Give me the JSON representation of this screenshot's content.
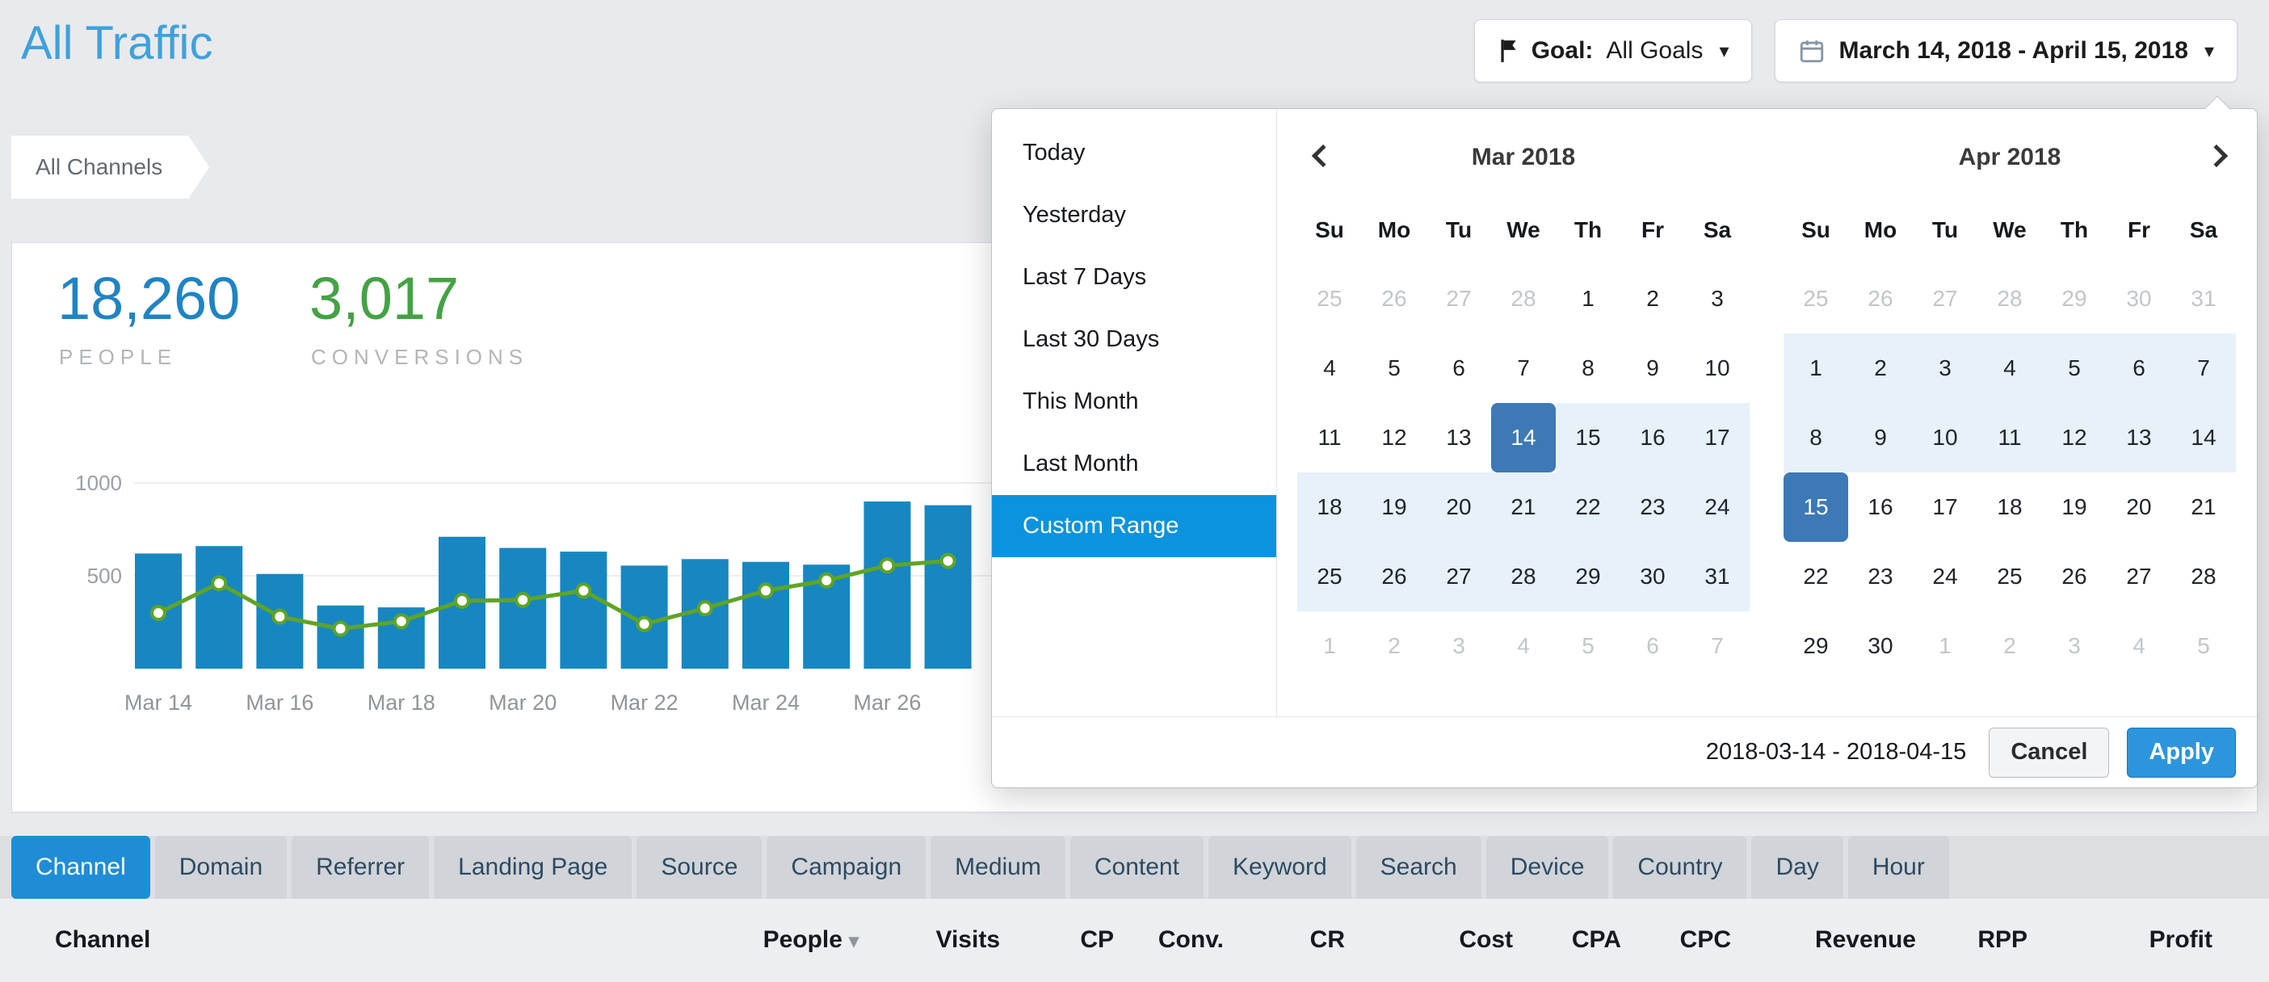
{
  "header": {
    "title": "All Traffic",
    "goal_button": {
      "label": "Goal:",
      "value": "All Goals"
    },
    "date_button": {
      "value": "March 14, 2018 - April 15, 2018"
    }
  },
  "breadcrumb": {
    "label": "All Channels"
  },
  "stats": {
    "people": {
      "value": "18,260",
      "label": "PEOPLE"
    },
    "conversions": {
      "value": "3,017",
      "label": "CONVERSIONS"
    }
  },
  "chart_data": {
    "type": "bar",
    "categories": [
      "Mar 14",
      "Mar 15",
      "Mar 16",
      "Mar 17",
      "Mar 18",
      "Mar 19",
      "Mar 20",
      "Mar 21",
      "Mar 22",
      "Mar 23",
      "Mar 24",
      "Mar 25",
      "Mar 26",
      "Mar 27"
    ],
    "series": [
      {
        "name": "People",
        "type": "bar",
        "color": "#1787c1",
        "values": [
          620,
          660,
          510,
          340,
          330,
          710,
          650,
          630,
          555,
          590,
          575,
          560,
          900,
          880
        ]
      },
      {
        "name": "Conversions",
        "type": "line",
        "color": "#5fa424",
        "values": [
          300,
          460,
          280,
          215,
          255,
          365,
          370,
          420,
          240,
          325,
          420,
          475,
          555,
          580
        ]
      }
    ],
    "x_tick_labels": [
      "Mar 14",
      "Mar 16",
      "Mar 18",
      "Mar 20",
      "Mar 22",
      "Mar 24",
      "Mar 26"
    ],
    "y_ticks": [
      500,
      1000
    ],
    "ylim": [
      0,
      1100
    ],
    "grid": "horizontal",
    "legend": "none",
    "note": "right portion of chart hidden behind date-picker overlay; values estimated from pixels, line plotted on same left axis"
  },
  "datepicker": {
    "ranges": [
      "Today",
      "Yesterday",
      "Last 7 Days",
      "Last 30 Days",
      "This Month",
      "Last Month",
      "Custom Range"
    ],
    "active_range": "Custom Range",
    "weekdays": [
      "Su",
      "Mo",
      "Tu",
      "We",
      "Th",
      "Fr",
      "Sa"
    ],
    "months": [
      {
        "title": "Mar 2018",
        "weeks": [
          [
            "25:o",
            "26:o",
            "27:o",
            "28:o",
            "1",
            "2",
            "3"
          ],
          [
            "4",
            "5",
            "6",
            "7",
            "8",
            "9",
            "10"
          ],
          [
            "11",
            "12",
            "13",
            "14:s",
            "15:r",
            "16:r",
            "17:r"
          ],
          [
            "18:r",
            "19:r",
            "20:r",
            "21:r",
            "22:r",
            "23:r",
            "24:r"
          ],
          [
            "25:r",
            "26:r",
            "27:r",
            "28:r",
            "29:r",
            "30:r",
            "31:r"
          ],
          [
            "1:o",
            "2:o",
            "3:o",
            "4:o",
            "5:o",
            "6:o",
            "7:o"
          ]
        ]
      },
      {
        "title": "Apr 2018",
        "weeks": [
          [
            "25:o",
            "26:o",
            "27:o",
            "28:o",
            "29:o",
            "30:o",
            "31:o"
          ],
          [
            "1:r",
            "2:r",
            "3:r",
            "4:r",
            "5:r",
            "6:r",
            "7:r"
          ],
          [
            "8:r",
            "9:r",
            "10:r",
            "11:r",
            "12:r",
            "13:r",
            "14:r"
          ],
          [
            "15:s",
            "16",
            "17",
            "18",
            "19",
            "20",
            "21"
          ],
          [
            "22",
            "23",
            "24",
            "25",
            "26",
            "27",
            "28"
          ],
          [
            "29",
            "30",
            "1:o",
            "2:o",
            "3:o",
            "4:o",
            "5:o"
          ]
        ]
      }
    ],
    "selected_start": "2018-03-14",
    "selected_end": "2018-04-15",
    "footer": {
      "range_text": "2018-03-14 - 2018-04-15",
      "cancel_label": "Cancel",
      "apply_label": "Apply"
    }
  },
  "tabs": {
    "items": [
      "Channel",
      "Domain",
      "Referrer",
      "Landing Page",
      "Source",
      "Campaign",
      "Medium",
      "Content",
      "Keyword",
      "Search",
      "Device",
      "Country",
      "Day",
      "Hour"
    ],
    "active": "Channel"
  },
  "table": {
    "columns": [
      "Channel",
      "People",
      "Visits",
      "CP",
      "Conv.",
      "CR",
      "Cost",
      "CPA",
      "CPC",
      "Revenue",
      "RPP",
      "Profit"
    ],
    "sorted_column": "People",
    "sort_direction": "desc"
  },
  "colors": {
    "accent_blue": "#1f8dd6",
    "title_blue": "#3fa1dc",
    "people_blue": "#1f84c4",
    "conversions_green": "#44a244",
    "bar_blue": "#1787c1",
    "line_green": "#5fa424",
    "selected_day_bg": "#3d79b6",
    "range_bg": "#e6f1f9",
    "active_preset_bg": "#0c93dd"
  }
}
